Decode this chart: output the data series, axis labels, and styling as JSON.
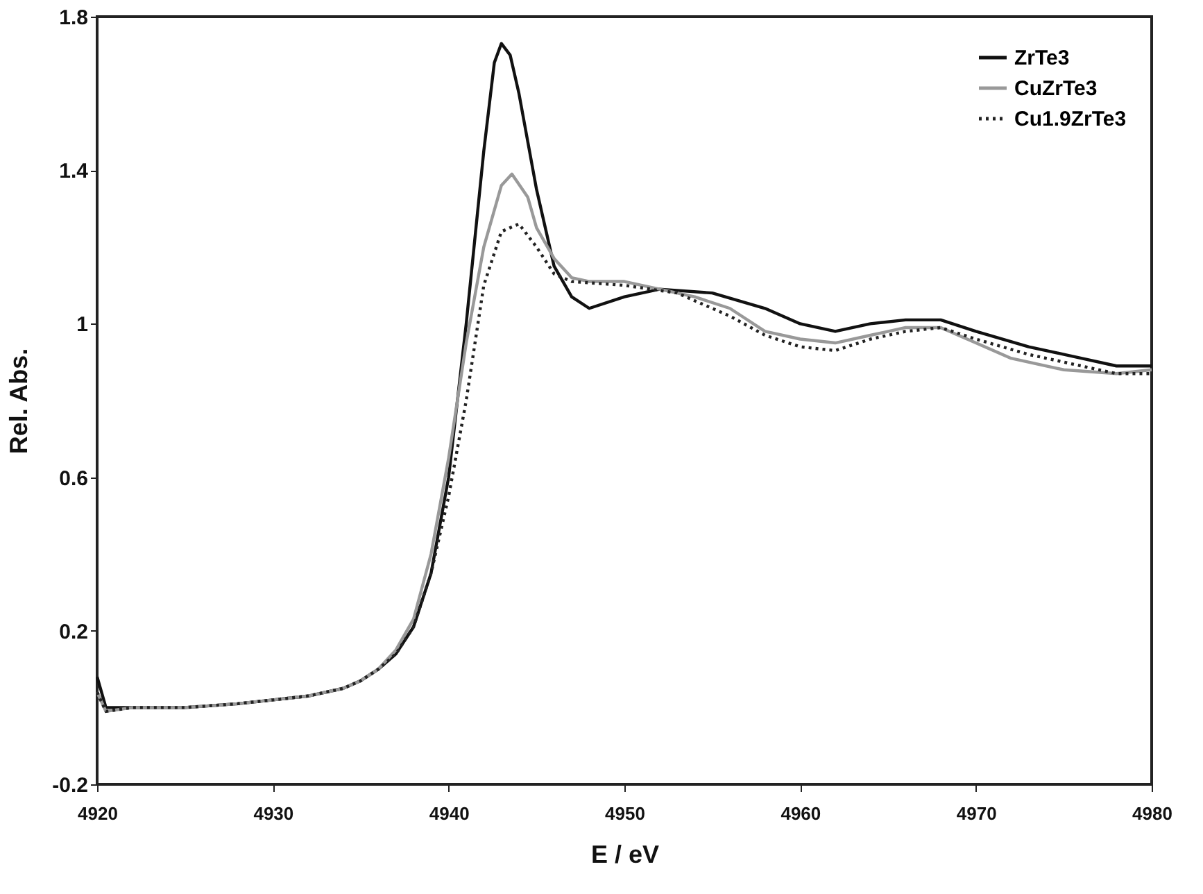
{
  "chart_data": {
    "type": "line",
    "xlabel": "E / eV",
    "ylabel": "Rel. Abs.",
    "xlim": [
      4920,
      4980
    ],
    "xticks": [
      4920,
      4930,
      4940,
      4950,
      4960,
      4970,
      4980
    ],
    "ylim": [
      -0.2,
      1.8
    ],
    "yticks": [
      -0.2,
      0.2,
      0.6,
      1,
      1.4,
      1.8
    ],
    "grid": false,
    "legend": "top right",
    "marker": "none",
    "series": [
      {
        "name": "ZrTe3",
        "color": "#111111",
        "line_style": "solid",
        "x": [
          4920,
          4920.5,
          4922,
          4925,
          4928,
          4930,
          4932,
          4934,
          4935,
          4936,
          4937,
          4938,
          4939,
          4940,
          4941,
          4942,
          4942.6,
          4943,
          4943.5,
          4944,
          4945,
          4946,
          4947,
          4948,
          4950,
          4952,
          4955,
          4958,
          4960,
          4962,
          4964,
          4966,
          4968,
          4970,
          4973,
          4976,
          4978,
          4980
        ],
        "values": [
          0.08,
          0.0,
          0.0,
          0.0,
          0.01,
          0.02,
          0.03,
          0.05,
          0.07,
          0.1,
          0.14,
          0.21,
          0.35,
          0.6,
          1.0,
          1.45,
          1.68,
          1.73,
          1.7,
          1.6,
          1.35,
          1.15,
          1.07,
          1.04,
          1.07,
          1.09,
          1.08,
          1.04,
          1.0,
          0.98,
          1.0,
          1.01,
          1.01,
          0.98,
          0.94,
          0.91,
          0.89,
          0.89
        ]
      },
      {
        "name": "CuZrTe3",
        "color": "#999999",
        "line_style": "solid",
        "x": [
          4920,
          4920.5,
          4922,
          4925,
          4928,
          4930,
          4932,
          4934,
          4935,
          4936,
          4937,
          4938,
          4939,
          4940,
          4941,
          4942,
          4943,
          4943.6,
          4944.5,
          4945,
          4946,
          4947,
          4948,
          4950,
          4952,
          4954,
          4956,
          4958,
          4960,
          4962,
          4964,
          4966,
          4968,
          4970,
          4972,
          4975,
          4978,
          4980
        ],
        "values": [
          0.04,
          -0.01,
          0.0,
          0.0,
          0.01,
          0.02,
          0.03,
          0.05,
          0.07,
          0.1,
          0.15,
          0.23,
          0.4,
          0.65,
          0.95,
          1.2,
          1.36,
          1.39,
          1.33,
          1.25,
          1.17,
          1.12,
          1.11,
          1.11,
          1.09,
          1.07,
          1.04,
          0.98,
          0.96,
          0.95,
          0.97,
          0.99,
          0.99,
          0.95,
          0.91,
          0.88,
          0.87,
          0.88
        ]
      },
      {
        "name": "Cu1.9ZrTe3",
        "color": "#222222",
        "line_style": "dotted",
        "x": [
          4920,
          4920.5,
          4922,
          4925,
          4928,
          4930,
          4932,
          4934,
          4935,
          4936,
          4937,
          4938,
          4939,
          4940,
          4941,
          4942,
          4943,
          4944,
          4945,
          4946,
          4947,
          4950,
          4953,
          4956,
          4958,
          4960,
          4962,
          4964,
          4966,
          4968,
          4970,
          4973,
          4976,
          4978,
          4980
        ],
        "values": [
          0.04,
          -0.01,
          0.0,
          0.0,
          0.01,
          0.02,
          0.03,
          0.05,
          0.07,
          0.1,
          0.14,
          0.21,
          0.35,
          0.55,
          0.8,
          1.1,
          1.24,
          1.26,
          1.2,
          1.13,
          1.11,
          1.1,
          1.08,
          1.02,
          0.97,
          0.94,
          0.93,
          0.96,
          0.98,
          0.99,
          0.96,
          0.92,
          0.89,
          0.87,
          0.87
        ]
      }
    ]
  }
}
